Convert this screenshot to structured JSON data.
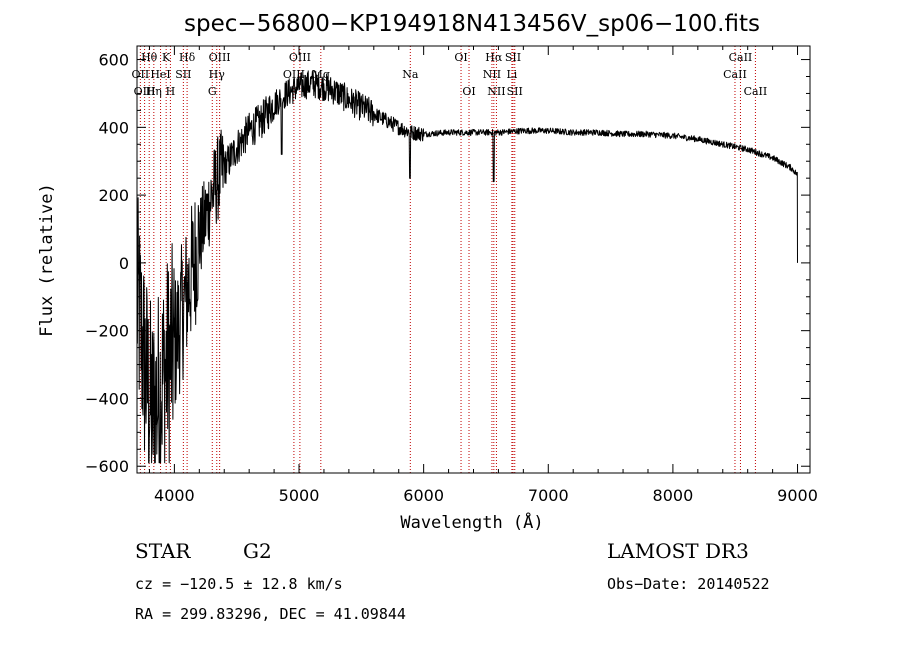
{
  "chart_data": {
    "type": "line",
    "title": "spec−56800−KP194918N413456V_sp06−100.fits",
    "xlabel": "Wavelength (Å)",
    "ylabel": "Flux (relative)",
    "xlim": [
      3700,
      9100
    ],
    "ylim": [
      -620,
      640
    ],
    "x_ticks": [
      4000,
      5000,
      6000,
      7000,
      8000,
      9000
    ],
    "x_tick_labels": [
      "4000",
      "5000",
      "6000",
      "7000",
      "8000",
      "9000"
    ],
    "y_ticks": [
      -600,
      -400,
      -200,
      0,
      200,
      400,
      600
    ],
    "y_tick_labels": [
      "−600",
      "−400",
      "−200",
      "0",
      "200",
      "400",
      "600"
    ],
    "spectrum_anchors": [
      [
        3700,
        -100
      ],
      [
        3760,
        -300
      ],
      [
        3820,
        -450
      ],
      [
        3880,
        -380
      ],
      [
        3940,
        -300
      ],
      [
        4000,
        -250
      ],
      [
        4060,
        -150
      ],
      [
        4120,
        -60
      ],
      [
        4180,
        40
      ],
      [
        4240,
        120
      ],
      [
        4300,
        200
      ],
      [
        4350,
        250
      ],
      [
        4420,
        290
      ],
      [
        4500,
        340
      ],
      [
        4600,
        390
      ],
      [
        4700,
        420
      ],
      [
        4800,
        470
      ],
      [
        4900,
        500
      ],
      [
        5000,
        520
      ],
      [
        5100,
        530
      ],
      [
        5200,
        520
      ],
      [
        5300,
        505
      ],
      [
        5400,
        480
      ],
      [
        5500,
        460
      ],
      [
        5600,
        440
      ],
      [
        5700,
        420
      ],
      [
        5800,
        400
      ],
      [
        5900,
        385
      ],
      [
        6000,
        380
      ],
      [
        6200,
        385
      ],
      [
        6400,
        385
      ],
      [
        6600,
        385
      ],
      [
        6800,
        390
      ],
      [
        7000,
        390
      ],
      [
        7200,
        385
      ],
      [
        7400,
        385
      ],
      [
        7600,
        380
      ],
      [
        7800,
        380
      ],
      [
        8000,
        375
      ],
      [
        8200,
        365
      ],
      [
        8400,
        350
      ],
      [
        8600,
        335
      ],
      [
        8800,
        310
      ],
      [
        8950,
        280
      ],
      [
        9000,
        260
      ]
    ],
    "absorption_features": [
      [
        4861,
        320
      ],
      [
        5890,
        250
      ],
      [
        6563,
        220
      ],
      [
        6563,
        240
      ]
    ],
    "lines": [
      {
        "name": "Hθ",
        "wavelength": 3798,
        "row": 0
      },
      {
        "name": "OII",
        "wavelength": 3727,
        "row": 1
      },
      {
        "name": "OIII",
        "wavelength": 3761,
        "row": 2
      },
      {
        "name": "Hη",
        "wavelength": 3835,
        "row": 2
      },
      {
        "name": "K",
        "wavelength": 3934,
        "row": 0
      },
      {
        "name": "HeI",
        "wavelength": 3889,
        "row": 1
      },
      {
        "name": "H",
        "wavelength": 3968,
        "row": 2
      },
      {
        "name": "SII",
        "wavelength": 4072,
        "row": 1
      },
      {
        "name": "Hδ",
        "wavelength": 4102,
        "row": 0
      },
      {
        "name": "OIII",
        "wavelength": 4363,
        "row": 0
      },
      {
        "name": "Hγ",
        "wavelength": 4340,
        "row": 1
      },
      {
        "name": "G",
        "wavelength": 4304,
        "row": 2
      },
      {
        "name": "OIII",
        "wavelength": 5007,
        "row": 0
      },
      {
        "name": "OIII",
        "wavelength": 4959,
        "row": 1
      },
      {
        "name": "Mg",
        "wavelength": 5175,
        "row": 1
      },
      {
        "name": "Na",
        "wavelength": 5893,
        "row": 1
      },
      {
        "name": "OI",
        "wavelength": 6300,
        "row": 0
      },
      {
        "name": "OI",
        "wavelength": 6364,
        "row": 2
      },
      {
        "name": "Hα",
        "wavelength": 6563,
        "row": 0
      },
      {
        "name": "SII",
        "wavelength": 6717,
        "row": 0
      },
      {
        "name": "NII",
        "wavelength": 6548,
        "row": 1
      },
      {
        "name": "Li",
        "wavelength": 6708,
        "row": 1
      },
      {
        "name": "NII",
        "wavelength": 6584,
        "row": 2
      },
      {
        "name": "SII",
        "wavelength": 6731,
        "row": 2
      },
      {
        "name": "CaII",
        "wavelength": 8542,
        "row": 0
      },
      {
        "name": "CaII",
        "wavelength": 8498,
        "row": 1
      },
      {
        "name": "CaII",
        "wavelength": 8662,
        "row": 2
      }
    ]
  },
  "info": {
    "class_label": "STAR",
    "subclass_label": "G2",
    "survey_label": "LAMOST DR3",
    "cz_text": "cz = −120.5 ± 12.8 km/s",
    "obs_date_text": "Obs−Date: 20140522",
    "radec_text": "RA = 299.83296, DEC =  41.09844"
  },
  "colors": {
    "spectrum": "#000000",
    "line_markers": "#c00000",
    "axes": "#000000",
    "background": "#ffffff"
  }
}
